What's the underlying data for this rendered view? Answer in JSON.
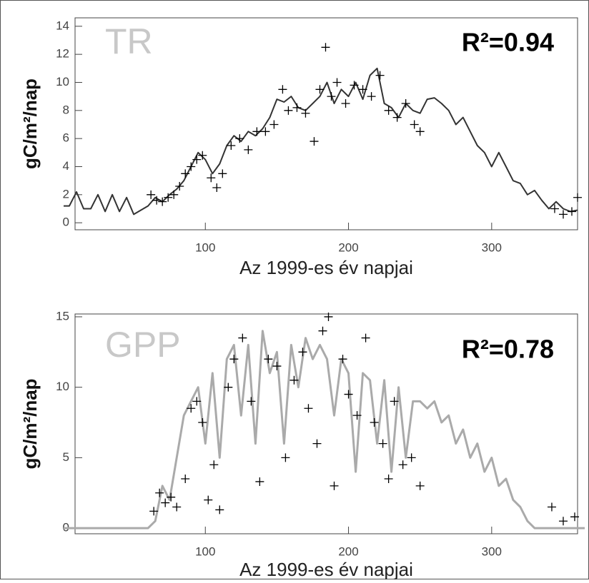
{
  "chart_data": [
    {
      "type": "line",
      "label": "TR",
      "annotation": "R²=0.94",
      "ylabel": "gC/m²/nap",
      "xlabel": "Az 1999-es év napjai",
      "xlim": [
        9,
        360
      ],
      "ylim": [
        -0.5,
        14.6
      ],
      "xticks": [
        100,
        200,
        300
      ],
      "yticks": [
        0,
        2,
        4,
        6,
        8,
        10,
        12,
        14
      ],
      "series": [
        {
          "kind": "line",
          "color": "#333333",
          "x": [
            1,
            5,
            10,
            15,
            20,
            25,
            30,
            35,
            40,
            45,
            50,
            55,
            60,
            65,
            70,
            75,
            80,
            85,
            90,
            95,
            100,
            105,
            110,
            115,
            120,
            125,
            130,
            135,
            140,
            145,
            150,
            155,
            160,
            165,
            170,
            175,
            180,
            185,
            190,
            195,
            200,
            205,
            210,
            215,
            220,
            225,
            230,
            235,
            240,
            245,
            250,
            255,
            260,
            265,
            270,
            275,
            280,
            285,
            290,
            295,
            300,
            305,
            310,
            315,
            320,
            325,
            330,
            335,
            340,
            345,
            350,
            355,
            360
          ],
          "values": [
            1.2,
            1.2,
            2.2,
            1.0,
            1.0,
            2.0,
            0.8,
            2.0,
            0.8,
            1.8,
            0.6,
            0.9,
            1.2,
            1.8,
            1.5,
            2.0,
            2.4,
            3.0,
            4.0,
            5.0,
            4.5,
            3.5,
            4.2,
            5.5,
            6.2,
            5.8,
            6.5,
            6.2,
            6.7,
            7.5,
            8.8,
            8.6,
            9.0,
            8.2,
            8.0,
            8.5,
            9.0,
            10.0,
            8.5,
            9.5,
            9.0,
            10.0,
            8.8,
            10.5,
            11.0,
            8.5,
            8.2,
            7.5,
            8.5,
            8.0,
            7.8,
            8.8,
            8.9,
            8.5,
            8.0,
            7.0,
            7.5,
            6.5,
            5.5,
            5.0,
            4.0,
            5.0,
            4.0,
            3.0,
            2.8,
            2.0,
            2.3,
            1.6,
            1.0,
            1.5,
            1.0,
            0.8,
            0.9
          ]
        },
        {
          "kind": "scatter",
          "color": "#000000",
          "x": [
            62,
            66,
            70,
            74,
            78,
            82,
            86,
            90,
            94,
            98,
            104,
            108,
            112,
            118,
            124,
            130,
            136,
            142,
            148,
            154,
            158,
            164,
            170,
            176,
            180,
            184,
            188,
            192,
            198,
            204,
            210,
            216,
            222,
            228,
            234,
            240,
            246,
            250,
            344,
            350,
            356,
            360
          ],
          "values": [
            2.0,
            1.6,
            1.5,
            1.8,
            2.0,
            2.6,
            3.5,
            4.0,
            4.5,
            4.8,
            3.2,
            2.5,
            3.5,
            5.5,
            6.0,
            5.2,
            6.5,
            6.5,
            7.0,
            9.5,
            8.0,
            8.2,
            7.8,
            5.8,
            9.5,
            12.5,
            9.0,
            10.0,
            8.5,
            9.8,
            9.5,
            9.0,
            10.5,
            8.0,
            7.5,
            8.5,
            7.0,
            6.5,
            1.0,
            0.6,
            0.8,
            1.8
          ]
        }
      ]
    },
    {
      "type": "line",
      "label": "GPP",
      "annotation": "R²=0.78",
      "ylabel": "gC/m²/nap",
      "xlabel": "Az 1999-es év napjai",
      "xlim": [
        9,
        360
      ],
      "ylim": [
        -0.4,
        15.2
      ],
      "xticks": [
        100,
        200,
        300
      ],
      "yticks": [
        0,
        5,
        10,
        15
      ],
      "series": [
        {
          "kind": "line",
          "color": "#aaaaaa",
          "x": [
            1,
            30,
            60,
            65,
            70,
            75,
            80,
            85,
            90,
            95,
            100,
            105,
            110,
            115,
            120,
            125,
            130,
            135,
            140,
            145,
            150,
            155,
            160,
            165,
            170,
            175,
            180,
            185,
            190,
            195,
            200,
            205,
            210,
            215,
            220,
            225,
            230,
            235,
            240,
            245,
            250,
            255,
            260,
            265,
            270,
            275,
            280,
            285,
            290,
            295,
            300,
            305,
            310,
            315,
            320,
            325,
            330,
            345,
            365
          ],
          "values": [
            0,
            0,
            0,
            0.5,
            3,
            2,
            5,
            8,
            9,
            10,
            6,
            11,
            5,
            12,
            13,
            8,
            13,
            6,
            14,
            11,
            12.5,
            6,
            13,
            10,
            13.5,
            12,
            13,
            12,
            8,
            12,
            11,
            4,
            11,
            10.5,
            6,
            10.5,
            4,
            10,
            5,
            9,
            9,
            8.5,
            9,
            7.5,
            8,
            6,
            7,
            5,
            6,
            4,
            5,
            3,
            3.5,
            2,
            1.5,
            0.5,
            0,
            0,
            0
          ]
        },
        {
          "kind": "scatter",
          "color": "#000000",
          "x": [
            64,
            68,
            72,
            76,
            80,
            86,
            90,
            94,
            98,
            102,
            106,
            110,
            116,
            120,
            126,
            132,
            138,
            144,
            150,
            156,
            162,
            168,
            172,
            178,
            182,
            186,
            190,
            196,
            200,
            206,
            212,
            218,
            224,
            228,
            232,
            238,
            244,
            250,
            342,
            350,
            358
          ],
          "values": [
            1.2,
            2.5,
            1.8,
            2.2,
            1.5,
            3.5,
            8.5,
            9.0,
            7.5,
            2.0,
            4.5,
            1.3,
            10.0,
            12.0,
            13.5,
            9.0,
            3.3,
            12.0,
            11.5,
            5.0,
            10.5,
            12.5,
            8.5,
            6.0,
            14.0,
            15.0,
            3.0,
            12.0,
            9.5,
            8.0,
            13.5,
            7.5,
            6.0,
            3.5,
            9.0,
            4.5,
            5.0,
            3.0,
            1.5,
            0.5,
            0.8
          ]
        }
      ]
    }
  ]
}
